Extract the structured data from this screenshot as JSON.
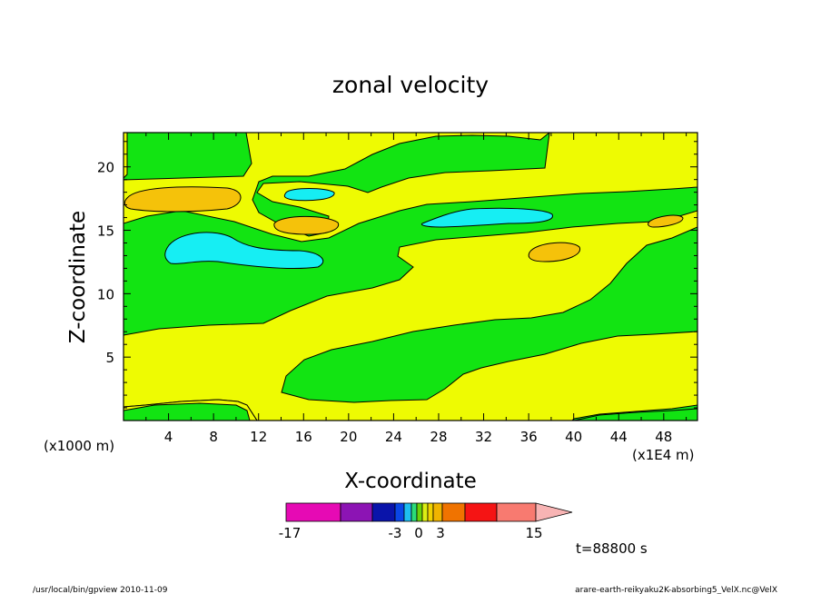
{
  "chart_data": {
    "type": "heatmap",
    "title": "zonal velocity",
    "xlabel": "X-coordinate",
    "ylabel": "Z-coordinate",
    "x_unit_left": "(x1000 m)",
    "x_unit_right": "(x1E4 m)",
    "x_ticks": [
      "4",
      "8",
      "12",
      "16",
      "20",
      "24",
      "28",
      "32",
      "36",
      "40",
      "44",
      "48"
    ],
    "y_ticks": [
      "5",
      "10",
      "15",
      "20"
    ],
    "xlim": [
      0,
      51
    ],
    "ylim": [
      0,
      22.7
    ],
    "colorbar": {
      "labels": [
        "-17",
        "-3",
        "0",
        "3",
        "15"
      ],
      "colors": [
        "#e60ab4",
        "#8c14b4",
        "#0a14aa",
        "#0a46e6",
        "#1ebef0",
        "#2adc7a",
        "#6ad20a",
        "#dcee14",
        "#f0d200",
        "#f0b400",
        "#f07300",
        "#f51414",
        "#f87a70",
        "#f8b4b4"
      ]
    },
    "fill_colors": {
      "green": "#12e412",
      "yellow": "#eefb02",
      "orange": "#f5c20a",
      "cyan": "#16eef3"
    },
    "time_label": "t=88800 s",
    "footer_left": "/usr/local/bin/gpview  2010-11-09",
    "footer_right": "arare-earth-reikyaku2K-absorbing5_VelX.nc@VelX"
  }
}
